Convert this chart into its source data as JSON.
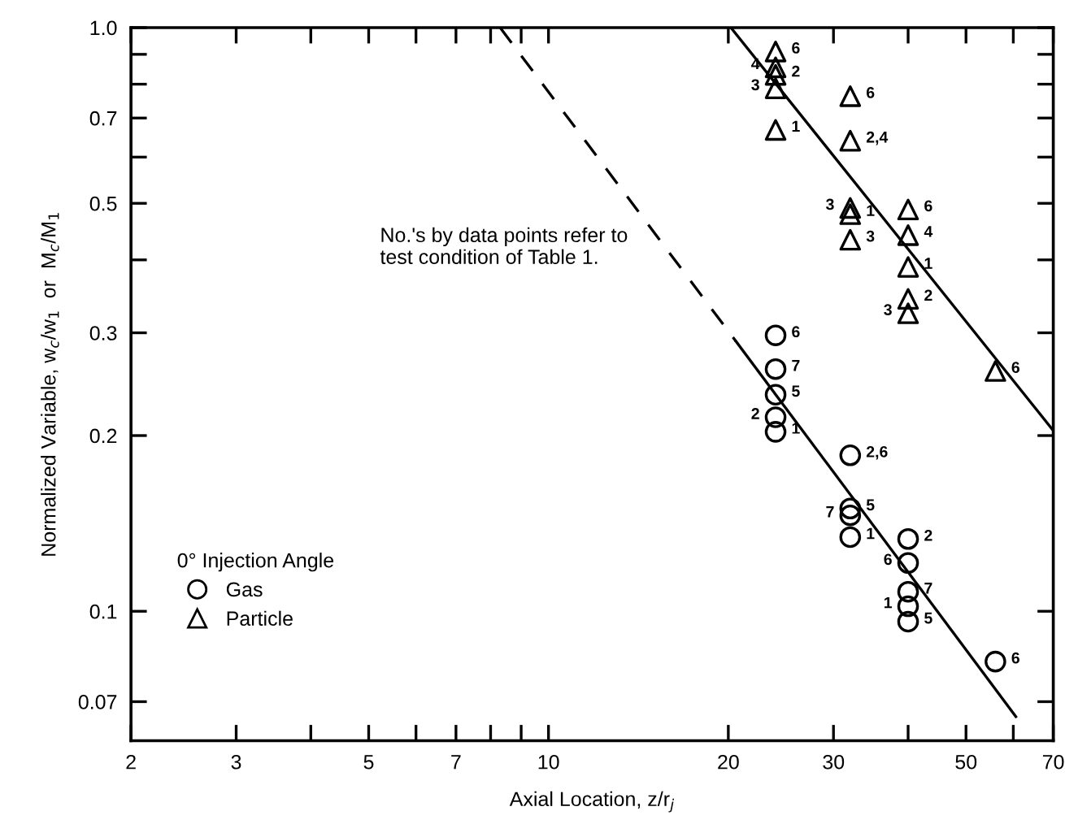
{
  "chart_data": {
    "type": "scatter",
    "xlabel": "Axial Location, z/r$_{j}$",
    "ylabel": "Normalized Variable, w$_{c}$/w$_{1}$  or  M$_{c}$/M$_{1}$",
    "legend_title": "0° Injection Angle",
    "legend": "bottom left",
    "log": "xy",
    "xlim": [
      2,
      70
    ],
    "ylim": [
      0.06,
      1.0
    ],
    "xticks": [
      2,
      3,
      {
        "value": 4,
        "label": null
      },
      5,
      {
        "value": 6,
        "label": null
      },
      7,
      {
        "value": 8,
        "label": null
      },
      {
        "value": 9,
        "label": null
      },
      10,
      20,
      30,
      {
        "value": 40,
        "label": null
      },
      50,
      {
        "value": 60,
        "label": null
      },
      70
    ],
    "yticks": [
      0.07,
      0.1,
      0.2,
      0.3,
      {
        "value": 0.4,
        "label": null
      },
      0.5,
      {
        "value": 0.6,
        "label": null
      },
      0.7,
      {
        "value": 0.8,
        "label": null
      },
      {
        "value": 0.9,
        "label": null
      },
      {
        "value": 1.0,
        "label": "1.0"
      }
    ],
    "series": [
      {
        "name": "Gas",
        "marker": "circle",
        "color": "#000000",
        "x": [
          24,
          24,
          24,
          24,
          24,
          32,
          32,
          32,
          32,
          40,
          40,
          40,
          40,
          40,
          56
        ],
        "values": [
          0.297,
          0.26,
          0.235,
          0.215,
          0.203,
          0.185,
          0.15,
          0.146,
          0.134,
          0.133,
          0.121,
          0.108,
          0.102,
          0.096,
          0.082
        ]
      },
      {
        "name": "Particle",
        "marker": "triangle",
        "color": "#000000",
        "x": [
          24,
          24,
          24,
          24,
          24,
          32,
          32,
          32,
          32,
          32,
          40,
          40,
          40,
          40,
          40,
          56
        ],
        "values": [
          0.91,
          0.855,
          0.83,
          0.787,
          0.668,
          0.763,
          0.64,
          0.491,
          0.479,
          0.433,
          0.488,
          0.441,
          0.389,
          0.343,
          0.324,
          0.258
        ]
      },
      {
        "type": "line",
        "line_style": "solid",
        "color": "#000000",
        "x": [
          20.2,
          70
        ],
        "values": [
          1.0,
          0.204
        ]
      },
      {
        "type": "line",
        "line_style": "solid",
        "color": "#000000",
        "x": [
          20.6,
          60.6
        ],
        "values": [
          0.29,
          0.066
        ]
      },
      {
        "type": "line",
        "line_style": "dashed",
        "color": "#000000",
        "x": [
          8.3,
          20.6
        ],
        "values": [
          1.0,
          0.29
        ]
      }
    ],
    "annotations": [
      "No.'s by data points refer to\ntest condition of Table 1.",
      {
        "text": "6",
        "x": 24,
        "y": 0.91
      },
      {
        "text": "4",
        "x": 24,
        "y": 0.855
      },
      {
        "text": "2",
        "x": 24,
        "y": 0.83
      },
      {
        "text": "3",
        "x": 24,
        "y": 0.787
      },
      {
        "text": "1",
        "x": 24,
        "y": 0.668
      },
      {
        "text": "6",
        "x": 32,
        "y": 0.763
      },
      {
        "text": "2,4",
        "x": 32,
        "y": 0.64
      },
      {
        "text": "1",
        "x": 32,
        "y": 0.479
      },
      {
        "text": "3",
        "x": 32,
        "y": 0.491
      },
      {
        "text": "3",
        "x": 32,
        "y": 0.433
      },
      {
        "text": "6",
        "x": 40,
        "y": 0.488
      },
      {
        "text": "4",
        "x": 40,
        "y": 0.441
      },
      {
        "text": "1",
        "x": 40,
        "y": 0.389
      },
      {
        "text": "2",
        "x": 40,
        "y": 0.343
      },
      {
        "text": "3",
        "x": 40,
        "y": 0.324
      },
      {
        "text": "6",
        "x": 56,
        "y": 0.258
      },
      {
        "text": "6",
        "x": 24,
        "y": 0.297
      },
      {
        "text": "7",
        "x": 24,
        "y": 0.26
      },
      {
        "text": "5",
        "x": 24,
        "y": 0.235
      },
      {
        "text": "2",
        "x": 24,
        "y": 0.215
      },
      {
        "text": "1",
        "x": 24,
        "y": 0.203
      },
      {
        "text": "2,6",
        "x": 32,
        "y": 0.185
      },
      {
        "text": "5",
        "x": 32,
        "y": 0.15
      },
      {
        "text": "7",
        "x": 32,
        "y": 0.146
      },
      {
        "text": "1",
        "x": 32,
        "y": 0.134
      },
      {
        "text": "2",
        "x": 40,
        "y": 0.133
      },
      {
        "text": "6",
        "x": 40,
        "y": 0.121
      },
      {
        "text": "7",
        "x": 40,
        "y": 0.108
      },
      {
        "text": "1",
        "x": 40,
        "y": 0.102
      },
      {
        "text": "5",
        "x": 40,
        "y": 0.096
      },
      {
        "text": "6",
        "x": 56,
        "y": 0.082
      }
    ]
  }
}
